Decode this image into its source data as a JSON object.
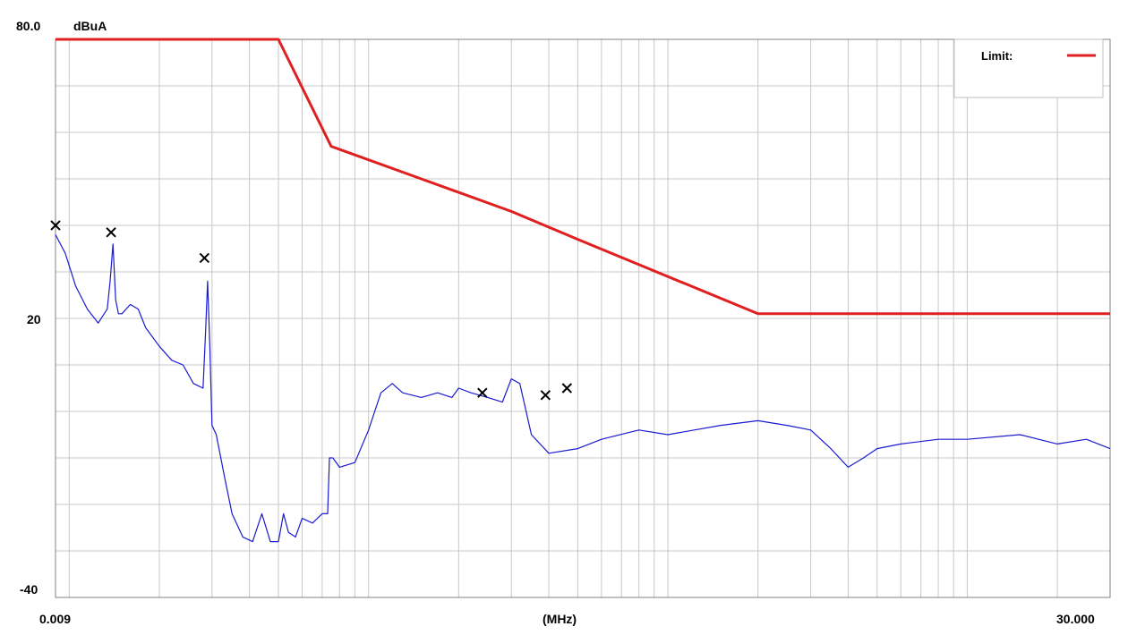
{
  "chart_data": {
    "type": "line",
    "title": "",
    "unit_label": "dBuA",
    "xlabel": "(MHz)",
    "x_scale": "log",
    "xlim": [
      0.009,
      30.0
    ],
    "ylim": [
      -40,
      80
    ],
    "y_tick_labels": [
      "80.0",
      "20",
      "-40"
    ],
    "x_tick_labels": [
      "0.009",
      "30.000"
    ],
    "grid": true,
    "legend_position": "top-right",
    "colors": {
      "limit": "#e02020",
      "measurement": "#1a1ad0",
      "grid": "#c8c8c8",
      "marker": "#000000"
    },
    "series": [
      {
        "name": "Limit:",
        "color": "#e02020",
        "x": [
          0.009,
          0.05,
          0.075,
          0.15,
          0.3,
          0.5,
          2.0,
          30.0
        ],
        "y": [
          80,
          80,
          57,
          50,
          43,
          37,
          21,
          21
        ]
      },
      {
        "color": "#1a1ad0",
        "x": [
          0.009,
          0.0097,
          0.0105,
          0.0115,
          0.0125,
          0.0134,
          0.0137,
          0.014,
          0.0143,
          0.0146,
          0.015,
          0.016,
          0.017,
          0.018,
          0.02,
          0.022,
          0.024,
          0.026,
          0.028,
          0.0285,
          0.029,
          0.0295,
          0.03,
          0.031,
          0.033,
          0.035,
          0.038,
          0.041,
          0.044,
          0.047,
          0.05,
          0.052,
          0.054,
          0.057,
          0.06,
          0.065,
          0.07,
          0.073,
          0.074,
          0.076,
          0.08,
          0.09,
          0.1,
          0.11,
          0.12,
          0.13,
          0.15,
          0.17,
          0.19,
          0.2,
          0.22,
          0.25,
          0.28,
          0.3,
          0.32,
          0.35,
          0.4,
          0.5,
          0.6,
          0.8,
          1.0,
          1.5,
          2.0,
          2.5,
          3.0,
          3.5,
          4.0,
          4.5,
          5.0,
          6.0,
          8.0,
          10.0,
          15.0,
          20.0,
          25.0,
          30.0
        ],
        "y": [
          38,
          34,
          27,
          22,
          19,
          22,
          28,
          36,
          24,
          21,
          21,
          23,
          22,
          18,
          14,
          11,
          10,
          6,
          5,
          16,
          28,
          14,
          -3,
          -5,
          -14,
          -22,
          -27,
          -28,
          -22,
          -28,
          -28,
          -22,
          -26,
          -27,
          -23,
          -24,
          -22,
          -22,
          -10,
          -10,
          -12,
          -11,
          -4,
          4,
          6,
          4,
          3,
          4,
          3,
          5,
          4,
          3,
          2,
          7,
          6,
          -5,
          -9,
          -8,
          -6,
          -4,
          -5,
          -3,
          -2,
          -3,
          -4,
          -8,
          -12,
          -10,
          -8,
          -7,
          -6,
          -6,
          -5,
          -7,
          -6,
          -8
        ]
      }
    ],
    "markers": {
      "x": [
        0.009,
        0.0138,
        0.0283,
        0.24,
        0.39,
        0.46
      ],
      "y": [
        40,
        38.5,
        33,
        4,
        3.5,
        5
      ]
    }
  }
}
